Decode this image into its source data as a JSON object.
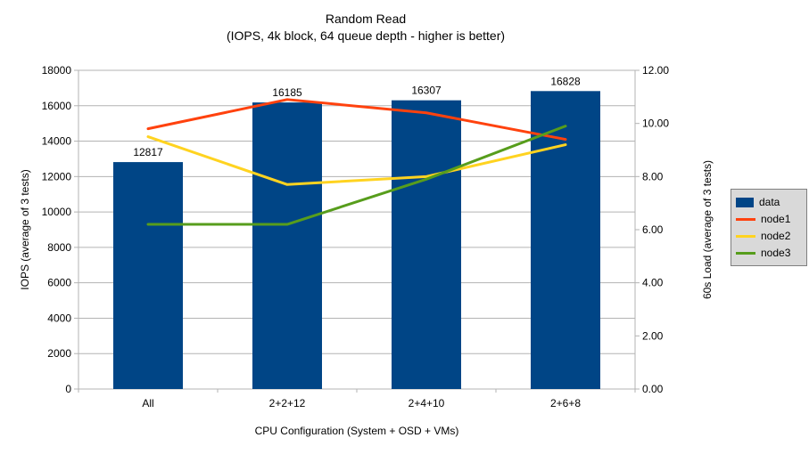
{
  "title": {
    "line1": "Random Read",
    "line2": "(IOPS, 4k block, 64 queue depth - higher is better)"
  },
  "chart_data": {
    "type": "bar+line",
    "categories": [
      "All",
      "2+2+12",
      "2+4+10",
      "2+6+8"
    ],
    "bar_series": {
      "name": "data",
      "color": "#004586",
      "axis": "left",
      "values": [
        12817,
        16185,
        16307,
        16828
      ],
      "data_labels": [
        "12817",
        "16185",
        "16307",
        "16828"
      ]
    },
    "line_series": [
      {
        "name": "node1",
        "color": "#ff420e",
        "axis": "right",
        "values": [
          9.8,
          10.9,
          10.4,
          9.4
        ]
      },
      {
        "name": "node2",
        "color": "#ffd320",
        "axis": "right",
        "values": [
          9.5,
          7.7,
          8.0,
          9.2
        ]
      },
      {
        "name": "node3",
        "color": "#579d1c",
        "axis": "right",
        "values": [
          6.2,
          6.2,
          7.9,
          9.9
        ]
      }
    ],
    "xlabel": "CPU Configuration (System + OSD + VMs)",
    "ylabel": "IOPS (average of 3 tests)",
    "y2label": "60s Load (average of 3 tests)",
    "ylim": [
      0,
      18000
    ],
    "ystep": 2000,
    "y2lim": [
      0,
      12
    ],
    "y2step": 2,
    "grid": true,
    "legend_position": "right"
  },
  "colors": {
    "grid": "#b3b3b3",
    "axis": "#b3b3b3",
    "text": "#000000",
    "legend_bg": "#d9d9d9",
    "legend_border": "#7f7f7f",
    "background": "#ffffff"
  }
}
